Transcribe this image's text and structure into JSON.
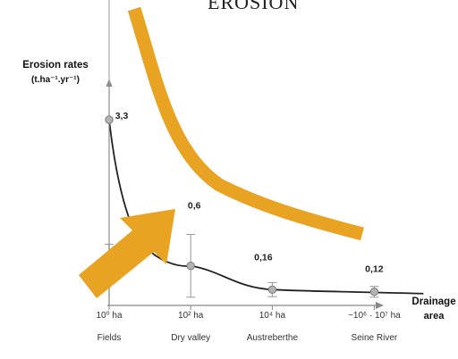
{
  "title": "EROSION",
  "colors": {
    "arrow": "#E8A323",
    "curve": "#222222",
    "axis": "#888888",
    "marker_fill": "#b3b3b3",
    "marker_stroke": "#7a7a7a",
    "error_bar": "#999999"
  },
  "chart_data": {
    "type": "line",
    "x_scale": "log",
    "ylabel_lines": [
      "Erosion rates",
      "(t.ha⁻¹.yr⁻¹)"
    ],
    "xlabel_lines": [
      "Drainage",
      "area"
    ],
    "ylim": [
      0,
      4
    ],
    "xlim_log10": [
      0,
      7
    ],
    "grid": false,
    "legend": "none",
    "points": [
      {
        "x": 1,
        "y": 3.3,
        "value_label": "3,3",
        "size_label": "10⁰ ha",
        "category": "Fields"
      },
      {
        "x": 100,
        "y": 0.6,
        "value_label": "0,6",
        "size_label": "10² ha",
        "category": "Dry valley"
      },
      {
        "x": 10000,
        "y": 0.16,
        "value_label": "0,16",
        "size_label": "10⁴ ha",
        "category": "Austreberthe"
      },
      {
        "x": 3162278,
        "y": 0.12,
        "value_label": "0,12",
        "size_label": "~10⁶ · 10⁷ ha",
        "category": "Seine River"
      }
    ]
  }
}
